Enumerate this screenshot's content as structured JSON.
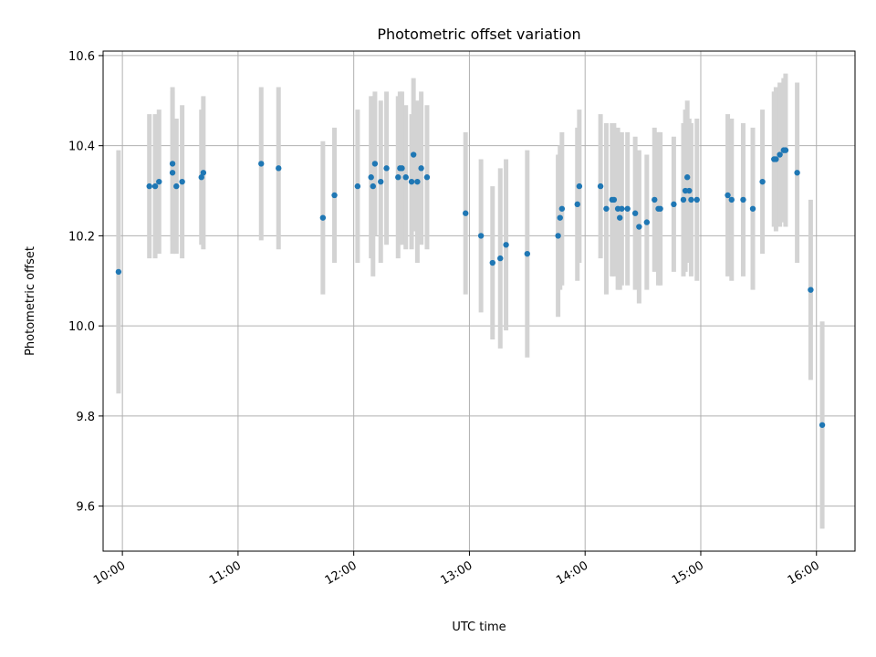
{
  "chart_data": {
    "type": "scatter",
    "title": "Photometric offset variation",
    "xlabel": "UTC time",
    "ylabel": "Photometric offset",
    "xlim": [
      "09:50",
      "16:20"
    ],
    "ylim": [
      9.5,
      10.61
    ],
    "x_ticks": [
      "10:00",
      "11:00",
      "12:00",
      "13:00",
      "14:00",
      "15:00",
      "16:00"
    ],
    "y_ticks": [
      "9.6",
      "9.8",
      "10.0",
      "10.2",
      "10.4",
      "10.6"
    ],
    "grid": true,
    "colors": {
      "point": "#1f77b4",
      "errorbar": "#d3d3d3",
      "grid": "#b0b0b0"
    },
    "points": [
      {
        "x": "09:58",
        "y": 10.12,
        "err": 0.27
      },
      {
        "x": "10:14",
        "y": 10.31,
        "err": 0.16
      },
      {
        "x": "10:17",
        "y": 10.31,
        "err": 0.16
      },
      {
        "x": "10:19",
        "y": 10.32,
        "err": 0.16
      },
      {
        "x": "10:26",
        "y": 10.34,
        "err": 0.18
      },
      {
        "x": "10:26",
        "y": 10.36,
        "err": 0.17
      },
      {
        "x": "10:28",
        "y": 10.31,
        "err": 0.15
      },
      {
        "x": "10:31",
        "y": 10.32,
        "err": 0.17
      },
      {
        "x": "10:41",
        "y": 10.33,
        "err": 0.15
      },
      {
        "x": "10:42",
        "y": 10.34,
        "err": 0.17
      },
      {
        "x": "11:12",
        "y": 10.36,
        "err": 0.17
      },
      {
        "x": "11:21",
        "y": 10.35,
        "err": 0.18
      },
      {
        "x": "11:44",
        "y": 10.24,
        "err": 0.17
      },
      {
        "x": "11:50",
        "y": 10.29,
        "err": 0.15
      },
      {
        "x": "12:02",
        "y": 10.31,
        "err": 0.17
      },
      {
        "x": "12:09",
        "y": 10.33,
        "err": 0.18
      },
      {
        "x": "12:10",
        "y": 10.31,
        "err": 0.2
      },
      {
        "x": "12:11",
        "y": 10.36,
        "err": 0.16
      },
      {
        "x": "12:14",
        "y": 10.32,
        "err": 0.18
      },
      {
        "x": "12:17",
        "y": 10.35,
        "err": 0.17
      },
      {
        "x": "12:23",
        "y": 10.33,
        "err": 0.18
      },
      {
        "x": "12:24",
        "y": 10.35,
        "err": 0.17
      },
      {
        "x": "12:25",
        "y": 10.35,
        "err": 0.17
      },
      {
        "x": "12:27",
        "y": 10.33,
        "err": 0.16
      },
      {
        "x": "12:30",
        "y": 10.32,
        "err": 0.15
      },
      {
        "x": "12:31",
        "y": 10.38,
        "err": 0.17
      },
      {
        "x": "12:33",
        "y": 10.32,
        "err": 0.18
      },
      {
        "x": "12:35",
        "y": 10.35,
        "err": 0.17
      },
      {
        "x": "12:38",
        "y": 10.33,
        "err": 0.16
      },
      {
        "x": "12:58",
        "y": 10.25,
        "err": 0.18
      },
      {
        "x": "13:06",
        "y": 10.2,
        "err": 0.17
      },
      {
        "x": "13:12",
        "y": 10.14,
        "err": 0.17
      },
      {
        "x": "13:16",
        "y": 10.15,
        "err": 0.2
      },
      {
        "x": "13:19",
        "y": 10.18,
        "err": 0.19
      },
      {
        "x": "13:30",
        "y": 10.16,
        "err": 0.23
      },
      {
        "x": "13:46",
        "y": 10.2,
        "err": 0.18
      },
      {
        "x": "13:47",
        "y": 10.24,
        "err": 0.16
      },
      {
        "x": "13:48",
        "y": 10.26,
        "err": 0.17
      },
      {
        "x": "13:56",
        "y": 10.27,
        "err": 0.17
      },
      {
        "x": "13:57",
        "y": 10.31,
        "err": 0.17
      },
      {
        "x": "14:08",
        "y": 10.31,
        "err": 0.16
      },
      {
        "x": "14:11",
        "y": 10.26,
        "err": 0.19
      },
      {
        "x": "14:14",
        "y": 10.28,
        "err": 0.17
      },
      {
        "x": "14:15",
        "y": 10.28,
        "err": 0.17
      },
      {
        "x": "14:17",
        "y": 10.26,
        "err": 0.18
      },
      {
        "x": "14:18",
        "y": 10.24,
        "err": 0.16
      },
      {
        "x": "14:19",
        "y": 10.26,
        "err": 0.17
      },
      {
        "x": "14:22",
        "y": 10.26,
        "err": 0.17
      },
      {
        "x": "14:26",
        "y": 10.25,
        "err": 0.17
      },
      {
        "x": "14:28",
        "y": 10.22,
        "err": 0.17
      },
      {
        "x": "14:32",
        "y": 10.23,
        "err": 0.15
      },
      {
        "x": "14:36",
        "y": 10.28,
        "err": 0.16
      },
      {
        "x": "14:38",
        "y": 10.26,
        "err": 0.17
      },
      {
        "x": "14:39",
        "y": 10.26,
        "err": 0.17
      },
      {
        "x": "14:46",
        "y": 10.27,
        "err": 0.15
      },
      {
        "x": "14:51",
        "y": 10.28,
        "err": 0.17
      },
      {
        "x": "14:52",
        "y": 10.3,
        "err": 0.18
      },
      {
        "x": "14:53",
        "y": 10.33,
        "err": 0.17
      },
      {
        "x": "14:54",
        "y": 10.3,
        "err": 0.16
      },
      {
        "x": "14:55",
        "y": 10.28,
        "err": 0.17
      },
      {
        "x": "14:58",
        "y": 10.28,
        "err": 0.18
      },
      {
        "x": "15:14",
        "y": 10.29,
        "err": 0.18
      },
      {
        "x": "15:16",
        "y": 10.28,
        "err": 0.18
      },
      {
        "x": "15:22",
        "y": 10.28,
        "err": 0.17
      },
      {
        "x": "15:27",
        "y": 10.26,
        "err": 0.18
      },
      {
        "x": "15:32",
        "y": 10.32,
        "err": 0.16
      },
      {
        "x": "15:38",
        "y": 10.37,
        "err": 0.15
      },
      {
        "x": "15:39",
        "y": 10.37,
        "err": 0.16
      },
      {
        "x": "15:41",
        "y": 10.38,
        "err": 0.16
      },
      {
        "x": "15:43",
        "y": 10.39,
        "err": 0.16
      },
      {
        "x": "15:44",
        "y": 10.39,
        "err": 0.17
      },
      {
        "x": "15:50",
        "y": 10.34,
        "err": 0.2
      },
      {
        "x": "15:57",
        "y": 10.08,
        "err": 0.2
      },
      {
        "x": "16:03",
        "y": 9.78,
        "err": 0.23
      }
    ]
  }
}
